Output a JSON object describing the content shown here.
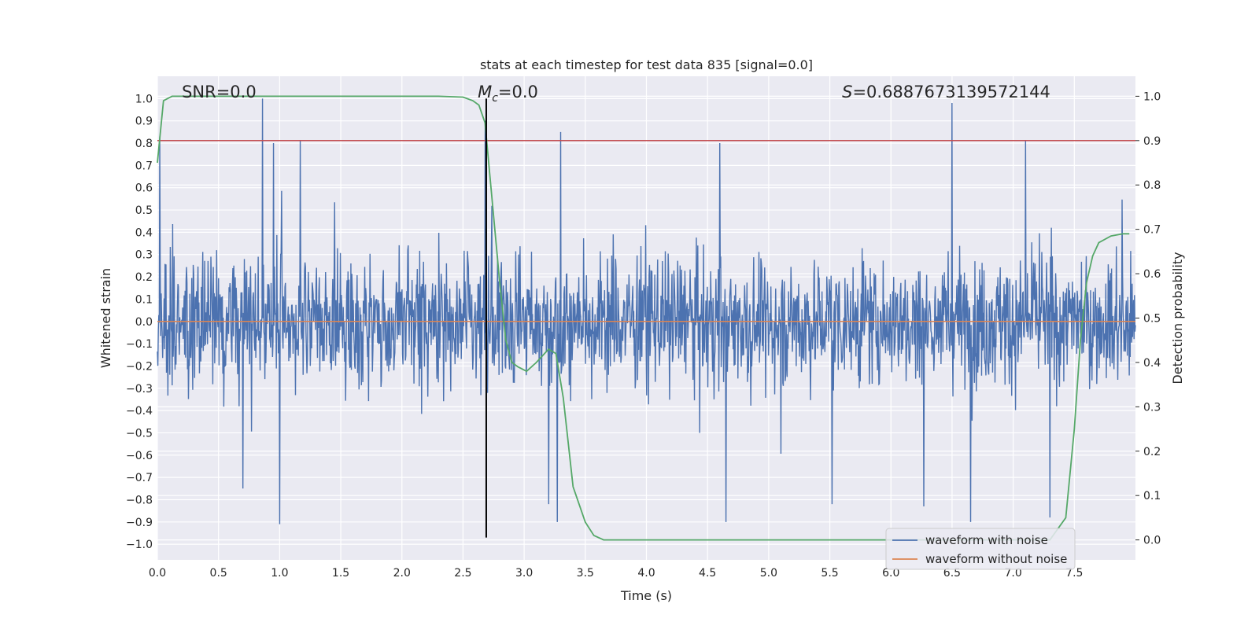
{
  "chart_data": {
    "type": "line",
    "title": "stats at each timestep for test data 835 [signal=0.0]",
    "xlabel": "Time (s)",
    "ylabel": "Whitened strain",
    "ylabel_right": "Detection probability",
    "xlim": [
      0.0,
      8.0
    ],
    "ylim": [
      -1.07,
      1.1
    ],
    "ylim_right": [
      -0.045,
      1.045
    ],
    "x_ticks": [
      0.0,
      0.5,
      1.0,
      1.5,
      2.0,
      2.5,
      3.0,
      3.5,
      4.0,
      4.5,
      5.0,
      5.5,
      6.0,
      6.5,
      7.0,
      7.5
    ],
    "x_tick_labels": [
      "0.0",
      "0.5",
      "1.0",
      "1.5",
      "2.0",
      "2.5",
      "3.0",
      "3.5",
      "4.0",
      "4.5",
      "5.0",
      "5.5",
      "6.0",
      "6.5",
      "7.0",
      "7.5"
    ],
    "y_ticks": [
      -1.0,
      -0.9,
      -0.8,
      -0.7,
      -0.6,
      -0.5,
      -0.4,
      -0.3,
      -0.2,
      -0.1,
      0.0,
      0.1,
      0.2,
      0.3,
      0.4,
      0.5,
      0.6,
      0.7,
      0.8,
      0.9,
      1.0
    ],
    "y_tick_labels": [
      "−1.0",
      "−0.9",
      "−0.8",
      "−0.7",
      "−0.6",
      "−0.5",
      "−0.4",
      "−0.3",
      "−0.2",
      "−0.1",
      "0.0",
      "0.1",
      "0.2",
      "0.3",
      "0.4",
      "0.5",
      "0.6",
      "0.7",
      "0.8",
      "0.9",
      "1.0"
    ],
    "y_right_ticks": [
      0.0,
      0.1,
      0.2,
      0.3,
      0.4,
      0.5,
      0.6,
      0.7,
      0.8,
      0.9,
      1.0
    ],
    "y_right_tick_labels": [
      "0.0",
      "0.1",
      "0.2",
      "0.3",
      "0.4",
      "0.5",
      "0.6",
      "0.7",
      "0.8",
      "0.9",
      "1.0"
    ],
    "grid": true,
    "legend_placement": "lower-right",
    "annotations": {
      "snr": {
        "label": "SNR=0.0",
        "x": 0.2
      },
      "mc": {
        "symbol": "M",
        "sub": "c",
        "value": "=0.0",
        "x": 2.62
      },
      "s": {
        "symbol": "S",
        "value": "=0.6887673139572144",
        "x": 5.6
      }
    },
    "series": [
      {
        "name": "waveform with noise",
        "color": "#4c72b0",
        "axis": "left",
        "n_samples": 2048,
        "typical_amplitude": 0.32,
        "peaks": [
          {
            "x": 0.86,
            "y": 1.0
          },
          {
            "x": 0.02,
            "y": 0.83
          },
          {
            "x": 0.95,
            "y": 0.8
          },
          {
            "x": 1.17,
            "y": 0.81
          },
          {
            "x": 2.68,
            "y": 0.9
          },
          {
            "x": 3.3,
            "y": 0.85
          },
          {
            "x": 4.6,
            "y": 0.8
          },
          {
            "x": 6.5,
            "y": 0.98
          },
          {
            "x": 7.1,
            "y": 0.81
          },
          {
            "x": 1.0,
            "y": -0.91
          },
          {
            "x": 3.27,
            "y": -0.9
          },
          {
            "x": 4.65,
            "y": -0.9
          },
          {
            "x": 6.65,
            "y": -0.9
          },
          {
            "x": 7.3,
            "y": -0.88
          },
          {
            "x": 0.7,
            "y": -0.75
          },
          {
            "x": 3.2,
            "y": -0.82
          },
          {
            "x": 5.52,
            "y": -0.82
          },
          {
            "x": 6.27,
            "y": -0.83
          }
        ]
      },
      {
        "name": "waveform without noise",
        "color": "#dd8452",
        "axis": "left",
        "x": [
          0.0,
          8.0
        ],
        "y": [
          0.0,
          0.0
        ]
      },
      {
        "color": "#55a868",
        "axis": "right",
        "x": [
          0.0,
          0.05,
          0.12,
          0.5,
          1.0,
          1.5,
          2.0,
          2.3,
          2.5,
          2.58,
          2.63,
          2.68,
          2.72,
          2.76,
          2.8,
          2.85,
          2.9,
          2.95,
          3.02,
          3.1,
          3.2,
          3.26,
          3.32,
          3.4,
          3.5,
          3.57,
          3.65,
          4.0,
          5.0,
          6.0,
          7.0,
          7.3,
          7.43,
          7.5,
          7.55,
          7.6,
          7.65,
          7.7,
          7.8,
          7.9,
          7.95
        ],
        "y": [
          0.85,
          0.99,
          1.0,
          1.0,
          1.0,
          1.0,
          1.0,
          1.0,
          0.998,
          0.99,
          0.98,
          0.94,
          0.82,
          0.7,
          0.58,
          0.45,
          0.4,
          0.39,
          0.38,
          0.4,
          0.43,
          0.42,
          0.32,
          0.12,
          0.04,
          0.01,
          0.0,
          0.0,
          0.0,
          0.0,
          0.0,
          0.0,
          0.05,
          0.25,
          0.45,
          0.58,
          0.64,
          0.67,
          0.685,
          0.69,
          0.69
        ]
      }
    ],
    "threshold_line": {
      "color": "#c44e52",
      "axis": "right",
      "y": 0.9
    },
    "vertical_marker": {
      "color": "#000000",
      "x": 2.69,
      "y_top": 1.0,
      "y_bottom": -0.97
    },
    "colors": {
      "plot_background": "#eaeaf2",
      "grid": "#ffffff",
      "text": "#262626"
    }
  }
}
